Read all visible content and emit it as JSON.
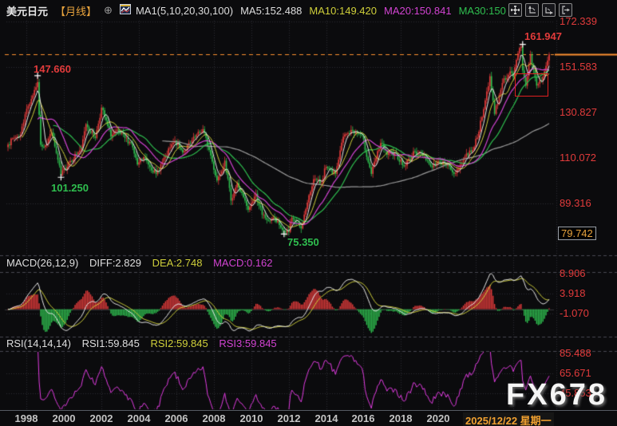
{
  "title_bar": {
    "symbol": "美元日元",
    "period": "【月线】",
    "add_glyph": "⊕",
    "ma_settings": "MA1(5,10,20,30,100)",
    "ma5_label": "MA5:152.488",
    "ma10_label": "MA10:149.420",
    "ma20_label": "MA20:150.841",
    "ma30_label": "MA30:150"
  },
  "main_chart": {
    "price_axis": [
      "172.339",
      "151.583",
      "130.827",
      "110.072",
      "89.316"
    ],
    "boxed_price": "79.742",
    "annotations": {
      "high_1998": "147.660",
      "low_1999": "101.250",
      "low_2011": "75.350",
      "high_2024": "161.947"
    }
  },
  "macd_pane": {
    "name": "MACD(26,12,9)",
    "diff_label": "DIFF:2.829",
    "dea_label": "DEA:2.748",
    "macd_label": "MACD:0.162",
    "axis": [
      "8.906",
      "3.918",
      "-1.070"
    ]
  },
  "rsi_pane": {
    "name": "RSI(14,14,14)",
    "rsi1_label": "RSI1:59.845",
    "rsi2_label": "RSI2:59.845",
    "rsi3_label": "RSI3:59.845",
    "axis": [
      "85.488",
      "65.671",
      "45.853"
    ]
  },
  "x_axis": {
    "years": [
      "1998",
      "2000",
      "2002",
      "2004",
      "2006",
      "2008",
      "2010",
      "2012",
      "2014",
      "2016",
      "2018",
      "2020"
    ],
    "date_label": "2025/12/22 星期一"
  },
  "watermark": "FX678",
  "colors": {
    "up": "#e23b3b",
    "down": "#2fbf4f",
    "ma5": "#e8e8e8",
    "ma10": "#cfcf3a",
    "ma20": "#d243d2",
    "ma30": "#2fbf4f",
    "ma100": "#9a9a9a",
    "diff": "#e8e8e8",
    "dea": "#cfcf3a",
    "rsi": "#e03ce0",
    "axis_text": "#e23b3b",
    "highlight": "#f0a030",
    "grid": "#2e2e34",
    "separator": "#4a4a52",
    "price_line": "#ff9030",
    "marker": "#ffffff",
    "select_box": "#e02020"
  },
  "chart_data": {
    "type": "candlestick",
    "instrument": "美元日元 (USD/JPY)",
    "period": "月线 (monthly)",
    "x_range": [
      "1997-01",
      "2025-12"
    ],
    "price_axis_values": [
      172.339,
      151.583,
      130.827,
      110.072,
      89.316,
      79.742
    ],
    "current_price_line": 157.4,
    "overlays": {
      "ma_periods": [
        5,
        10,
        20,
        30,
        100
      ],
      "ma_current": {
        "MA5": 152.488,
        "MA10": 149.42,
        "MA20": 150.841,
        "MA30": 150
      }
    },
    "key_points": [
      {
        "date": "1998-08",
        "type": "high",
        "price": 147.66
      },
      {
        "date": "1999-11",
        "type": "low",
        "price": 101.25
      },
      {
        "date": "2011-10",
        "type": "low",
        "price": 75.35
      },
      {
        "date": "2024-07",
        "type": "high",
        "price": 161.947
      }
    ],
    "monthly_close_anchors": [
      [
        "1997-01",
        116.2
      ],
      [
        "1997-05",
        119.3
      ],
      [
        "1997-09",
        120.8
      ],
      [
        "1997-12",
        130.0
      ],
      [
        "1998-08",
        144.7
      ],
      [
        "1998-10",
        116.1
      ],
      [
        "1999-01",
        115.9
      ],
      [
        "1999-05",
        121.8
      ],
      [
        "1999-11",
        102.2
      ],
      [
        "2000-04",
        108.1
      ],
      [
        "2000-12",
        114.4
      ],
      [
        "2001-03",
        125.5
      ],
      [
        "2001-09",
        119.2
      ],
      [
        "2002-01",
        133.0
      ],
      [
        "2002-07",
        119.8
      ],
      [
        "2002-10",
        122.5
      ],
      [
        "2003-08",
        116.8
      ],
      [
        "2003-12",
        107.1
      ],
      [
        "2004-04",
        110.4
      ],
      [
        "2004-12",
        102.7
      ],
      [
        "2005-06",
        110.9
      ],
      [
        "2005-12",
        117.9
      ],
      [
        "2006-05",
        112.6
      ],
      [
        "2006-10",
        117.0
      ],
      [
        "2007-06",
        123.2
      ],
      [
        "2007-11",
        111.2
      ],
      [
        "2008-03",
        99.8
      ],
      [
        "2008-08",
        108.8
      ],
      [
        "2008-12",
        90.6
      ],
      [
        "2009-04",
        98.6
      ],
      [
        "2009-11",
        86.4
      ],
      [
        "2010-04",
        93.8
      ],
      [
        "2010-08",
        84.2
      ],
      [
        "2010-12",
        81.5
      ],
      [
        "2011-03",
        82.8
      ],
      [
        "2011-10",
        76.7
      ],
      [
        "2012-01",
        76.3
      ],
      [
        "2012-03",
        82.9
      ],
      [
        "2012-09",
        77.9
      ],
      [
        "2012-12",
        86.7
      ],
      [
        "2013-05",
        100.4
      ],
      [
        "2013-10",
        98.3
      ],
      [
        "2013-12",
        105.3
      ],
      [
        "2014-07",
        102.8
      ],
      [
        "2014-12",
        119.8
      ],
      [
        "2015-06",
        122.5
      ],
      [
        "2015-12",
        120.3
      ],
      [
        "2016-06",
        102.8
      ],
      [
        "2016-12",
        116.9
      ],
      [
        "2017-04",
        111.5
      ],
      [
        "2017-09",
        112.5
      ],
      [
        "2018-03",
        106.3
      ],
      [
        "2018-10",
        112.9
      ],
      [
        "2019-04",
        111.4
      ],
      [
        "2019-08",
        106.3
      ],
      [
        "2020-02",
        108.1
      ],
      [
        "2020-05",
        107.8
      ],
      [
        "2020-12",
        103.2
      ],
      [
        "2021-06",
        110.7
      ],
      [
        "2021-12",
        115.1
      ],
      [
        "2022-05",
        128.7
      ],
      [
        "2022-10",
        147.4
      ],
      [
        "2023-01",
        130.2
      ],
      [
        "2023-06",
        144.3
      ],
      [
        "2023-11",
        149.6
      ],
      [
        "2024-01",
        146.9
      ],
      [
        "2024-04",
        157.8
      ],
      [
        "2024-06",
        160.9
      ],
      [
        "2024-07",
        150.0
      ],
      [
        "2024-09",
        143.0
      ],
      [
        "2024-12",
        157.2
      ],
      [
        "2025-04",
        143.1
      ],
      [
        "2025-08",
        147.1
      ],
      [
        "2025-12",
        157.4
      ]
    ],
    "indicators": [
      {
        "name": "MACD",
        "params": "26,12,9",
        "DIFF": 2.829,
        "DEA": 2.748,
        "MACD": 0.162,
        "axis_values": [
          8.906,
          3.918,
          -1.07
        ]
      },
      {
        "name": "RSI",
        "params": "14,14,14",
        "RSI1": 59.845,
        "RSI2": 59.845,
        "RSI3": 59.845,
        "axis_values": [
          85.488,
          65.671,
          45.853
        ]
      }
    ],
    "x_tick_years": [
      1998,
      2000,
      2002,
      2004,
      2006,
      2008,
      2010,
      2012,
      2014,
      2016,
      2018,
      2020
    ],
    "crosshair_date": "2025/12/22 星期一"
  }
}
